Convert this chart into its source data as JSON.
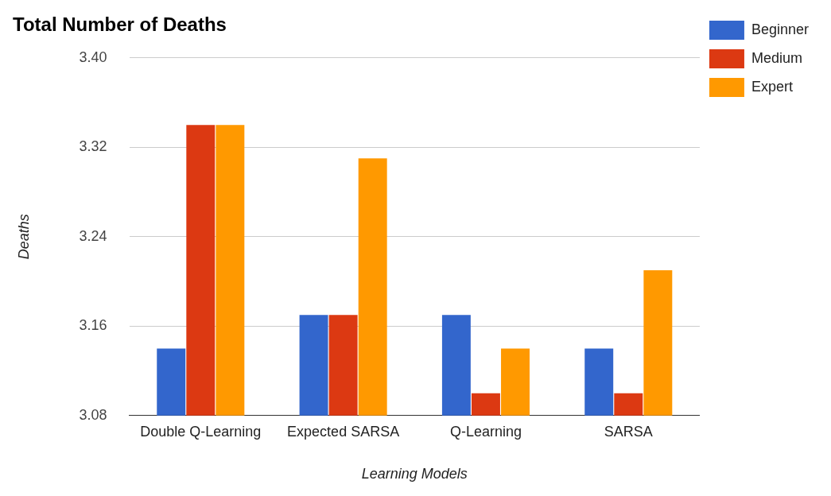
{
  "chart_data": {
    "type": "bar",
    "title": "Total Number of Deaths",
    "xlabel": "Learning Models",
    "ylabel": "Deaths",
    "categories": [
      "Double Q-Learning",
      "Expected SARSA",
      "Q-Learning",
      "SARSA"
    ],
    "series": [
      {
        "name": "Beginner",
        "color": "#3366cc",
        "values": [
          3.14,
          3.17,
          3.17,
          3.14
        ]
      },
      {
        "name": "Medium",
        "color": "#dc3912",
        "values": [
          3.34,
          3.17,
          3.1,
          3.1
        ]
      },
      {
        "name": "Expert",
        "color": "#ff9900",
        "values": [
          3.34,
          3.31,
          3.14,
          3.21
        ]
      }
    ],
    "ylim": [
      3.08,
      3.4
    ],
    "yticks": [
      {
        "value": 3.08,
        "label": "3.08"
      },
      {
        "value": 3.16,
        "label": "3.16"
      },
      {
        "value": 3.24,
        "label": "3.24"
      },
      {
        "value": 3.32,
        "label": "3.32"
      },
      {
        "value": 3.4,
        "label": "3.40"
      }
    ],
    "grid": "y",
    "legend": "top right"
  }
}
